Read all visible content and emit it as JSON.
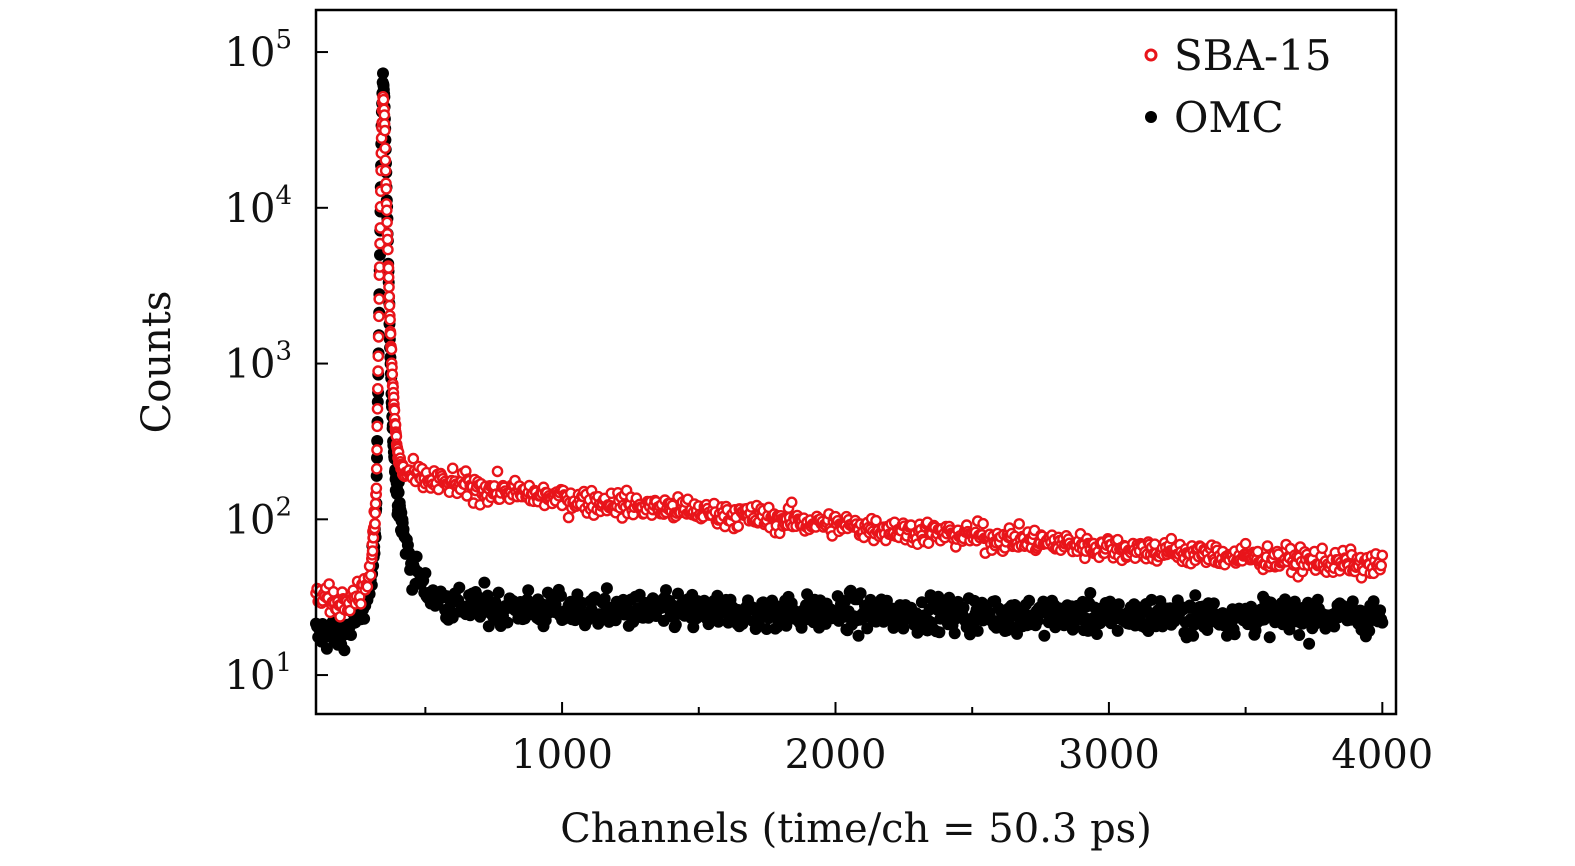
{
  "chart_data": {
    "type": "scatter",
    "title": "",
    "xlabel": "Channels (time/ch = 50.3 ps)",
    "ylabel": "Counts",
    "xlim": [
      100,
      4050
    ],
    "ylim_log10": [
      0.75,
      5.27
    ],
    "yscale": "log",
    "x_ticks": [
      1000,
      2000,
      3000,
      4000
    ],
    "x_tick_labels": [
      "1000",
      "2000",
      "3000",
      "4000"
    ],
    "x_minor_ticks": [
      500,
      1500,
      2500,
      3500
    ],
    "y_ticks": [
      {
        "base": "10",
        "exp": "1",
        "value": 10
      },
      {
        "base": "10",
        "exp": "2",
        "value": 100
      },
      {
        "base": "10",
        "exp": "3",
        "value": 1000
      },
      {
        "base": "10",
        "exp": "4",
        "value": 10000
      },
      {
        "base": "10",
        "exp": "5",
        "value": 100000
      }
    ],
    "legend_position": "top-right",
    "series": [
      {
        "name": "SBA-15",
        "marker": "open-circle",
        "color": "#e8141a",
        "points": [
          [
            100,
            30
          ],
          [
            140,
            32
          ],
          [
            180,
            28
          ],
          [
            220,
            33
          ],
          [
            260,
            34
          ],
          [
            300,
            45
          ],
          [
            320,
            140
          ],
          [
            330,
            2000
          ],
          [
            340,
            30000
          ],
          [
            345,
            50000
          ],
          [
            350,
            40000
          ],
          [
            360,
            8000
          ],
          [
            370,
            2000
          ],
          [
            380,
            800
          ],
          [
            390,
            400
          ],
          [
            400,
            250
          ],
          [
            420,
            200
          ],
          [
            500,
            178
          ],
          [
            700,
            158
          ],
          [
            1000,
            136
          ],
          [
            1500,
            112
          ],
          [
            2000,
            92
          ],
          [
            2500,
            78
          ],
          [
            3000,
            66
          ],
          [
            3500,
            57
          ],
          [
            4000,
            50
          ]
        ]
      },
      {
        "name": "OMC",
        "marker": "filled-circle",
        "color": "#000000",
        "points": [
          [
            100,
            18
          ],
          [
            140,
            19
          ],
          [
            180,
            17
          ],
          [
            220,
            20
          ],
          [
            260,
            24
          ],
          [
            300,
            35
          ],
          [
            320,
            110
          ],
          [
            330,
            1500
          ],
          [
            340,
            35000
          ],
          [
            345,
            70000
          ],
          [
            350,
            50000
          ],
          [
            360,
            10000
          ],
          [
            370,
            1500
          ],
          [
            380,
            400
          ],
          [
            390,
            200
          ],
          [
            400,
            130
          ],
          [
            420,
            80
          ],
          [
            450,
            50
          ],
          [
            500,
            35
          ],
          [
            600,
            28
          ],
          [
            1000,
            26
          ],
          [
            2000,
            25
          ],
          [
            3000,
            24
          ],
          [
            4000,
            24
          ]
        ]
      }
    ]
  }
}
